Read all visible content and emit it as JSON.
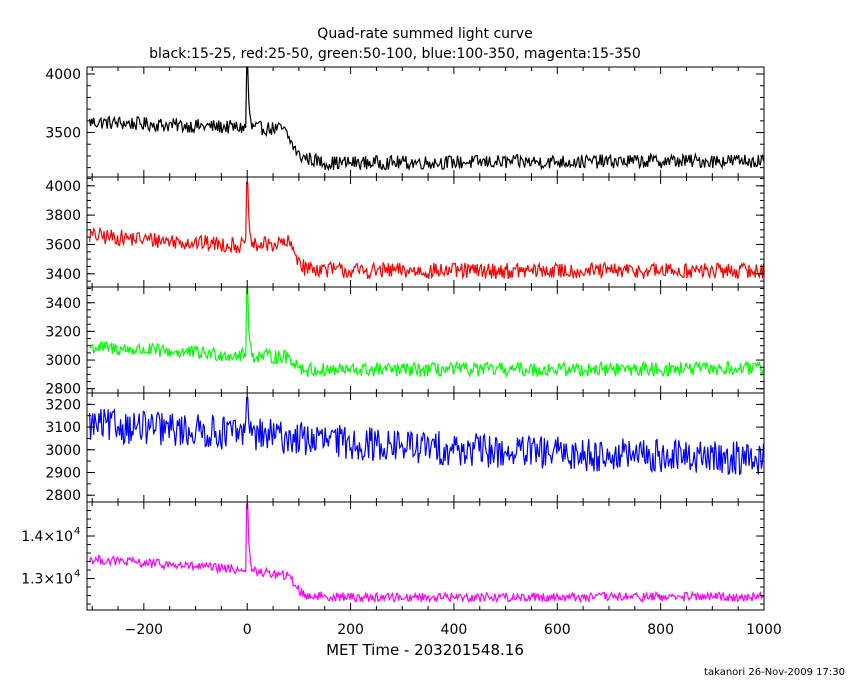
{
  "chart_data": {
    "type": "line",
    "title": "Quad-rate summed light curve",
    "subtitle": "black:15-25, red:25-50, green:50-100, blue:100-350, magenta:15-350",
    "xlabel": "MET Time - 203201548.16",
    "footer": "takanori 26-Nov-2009 17:30",
    "xlim": [
      -310,
      1000
    ],
    "x_ticks": [
      -200,
      0,
      200,
      400,
      600,
      800,
      1000
    ],
    "x_tick_labels": [
      "−200",
      "0",
      "200",
      "400",
      "600",
      "800",
      "1000"
    ],
    "x_sample_step": 2,
    "burst_time": 0,
    "grid": false,
    "panels": [
      {
        "name": "black",
        "band": "15-25",
        "color": "#000000",
        "ylim": [
          3120,
          4060
        ],
        "yticks": [
          3500,
          4000
        ],
        "ytick_labels": [
          "3500",
          "4000"
        ],
        "keypoints": [
          [
            -305,
            3590
          ],
          [
            0,
            3540
          ],
          [
            70,
            3530
          ],
          [
            100,
            3300
          ],
          [
            150,
            3240
          ],
          [
            1000,
            3260
          ]
        ],
        "noise": 60,
        "peak": 4060
      },
      {
        "name": "red",
        "band": "25-50",
        "color": "#ff0000",
        "ylim": [
          3310,
          4060
        ],
        "yticks": [
          3400,
          3600,
          3800,
          4000
        ],
        "ytick_labels": [
          "3400",
          "3600",
          "3800",
          "4000"
        ],
        "keypoints": [
          [
            -305,
            3660
          ],
          [
            0,
            3590
          ],
          [
            80,
            3610
          ],
          [
            110,
            3440
          ],
          [
            200,
            3420
          ],
          [
            1000,
            3420
          ]
        ],
        "noise": 55,
        "peak": 4020
      },
      {
        "name": "green",
        "band": "50-100",
        "color": "#00ff00",
        "ylim": [
          2770,
          3510
        ],
        "yticks": [
          2800,
          3000,
          3200,
          3400
        ],
        "ytick_labels": [
          "2800",
          "3000",
          "3200",
          "3400"
        ],
        "keypoints": [
          [
            -305,
            3090
          ],
          [
            0,
            3030
          ],
          [
            80,
            3020
          ],
          [
            110,
            2930
          ],
          [
            200,
            2930
          ],
          [
            1000,
            2940
          ]
        ],
        "noise": 50,
        "peak": 3500
      },
      {
        "name": "blue",
        "band": "100-350",
        "color": "#0000ff",
        "ylim": [
          2770,
          3250
        ],
        "yticks": [
          2800,
          2900,
          3000,
          3100,
          3200
        ],
        "ytick_labels": [
          "2800",
          "2900",
          "3000",
          "3100",
          "3200"
        ],
        "keypoints": [
          [
            -305,
            3110
          ],
          [
            0,
            3070
          ],
          [
            200,
            3030
          ],
          [
            500,
            2990
          ],
          [
            1000,
            2960
          ]
        ],
        "noise": 75,
        "peak": 3230
      },
      {
        "name": "magenta",
        "band": "15-350",
        "color": "#ff00ff",
        "ylim": [
          12260,
          14800
        ],
        "yticks": [
          13000,
          14000
        ],
        "ytick_labels": [
          "1.3×10",
          "1.4×10"
        ],
        "ytick_sup": "4",
        "keypoints": [
          [
            -305,
            13450
          ],
          [
            0,
            13200
          ],
          [
            80,
            13050
          ],
          [
            110,
            12600
          ],
          [
            200,
            12560
          ],
          [
            1000,
            12570
          ]
        ],
        "noise": 110,
        "peak": 14750
      }
    ]
  }
}
